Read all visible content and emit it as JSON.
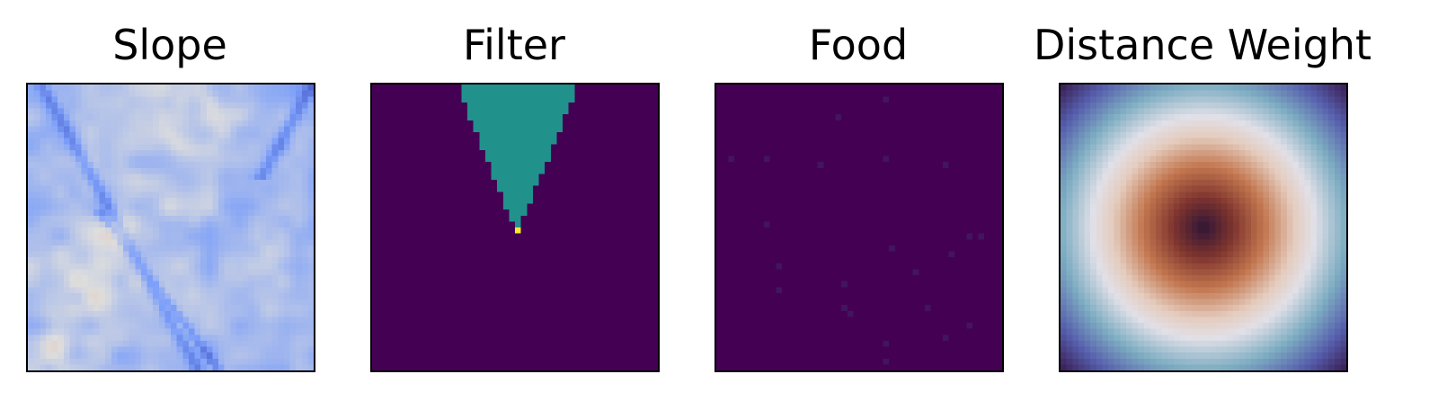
{
  "chart_data": [
    {
      "type": "heatmap",
      "title": "Slope",
      "colormap": "coolwarm",
      "grid_size": 48,
      "axes_visible": false,
      "pattern": "terrain slope field, mostly light blue with darker blue ridges and pale orange-pink patches",
      "value_range": [
        0,
        1
      ]
    },
    {
      "type": "heatmap",
      "title": "Filter",
      "colormap": "viridis",
      "grid_size": 48,
      "axes_visible": false,
      "pattern": "binary mask: background 0, downward-pointing triangle (cone) region 0.5 from top edge to agent cell, agent cell 1",
      "background_value": 0,
      "cone_value": 0.5,
      "agent_value": 1,
      "agent_cell": [
        24,
        24
      ],
      "cone_top_cols": [
        15,
        34
      ],
      "cone_apex_row": 23,
      "value_range": [
        0,
        1
      ]
    },
    {
      "type": "heatmap",
      "title": "Food",
      "colormap": "viridis",
      "grid_size": 48,
      "axes_visible": false,
      "pattern": "near-zero background with sparse faint food cells",
      "food_cells": [
        [
          2,
          28
        ],
        [
          5,
          20
        ],
        [
          12,
          2
        ],
        [
          12,
          8
        ],
        [
          13,
          17
        ],
        [
          12,
          28
        ],
        [
          13,
          38
        ],
        [
          23,
          8
        ],
        [
          25,
          42
        ],
        [
          25,
          44
        ],
        [
          27,
          29
        ],
        [
          28,
          39
        ],
        [
          30,
          10
        ],
        [
          31,
          33
        ],
        [
          33,
          21
        ],
        [
          34,
          10
        ],
        [
          37,
          21
        ],
        [
          37,
          35
        ],
        [
          38,
          22
        ],
        [
          40,
          42
        ],
        [
          42,
          38
        ],
        [
          43,
          28
        ],
        [
          46,
          28
        ]
      ],
      "food_value": 0.06,
      "value_range": [
        0,
        1
      ]
    },
    {
      "type": "heatmap",
      "title": "Distance Weight",
      "colormap": "twilight_shifted",
      "grid_size": 48,
      "axes_visible": false,
      "pattern": "radial weight centered on agent: dark center, orange/red mid ring, white ring, blue then purple toward corners",
      "center_cell": [
        24,
        24
      ],
      "value_range": [
        0,
        1
      ]
    }
  ]
}
